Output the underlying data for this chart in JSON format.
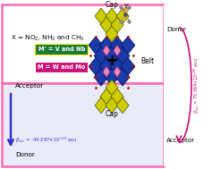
{
  "top_box_edgecolor": "#FF69B4",
  "top_box_facecolor": "#FFFFFF",
  "bottom_facecolor": "#E8EAF8",
  "formula_text": "X = NO$_2$, NH$_2$ and CH$_3$",
  "cap_label": "Cap",
  "belt_label": "Belt",
  "acceptor_left": "Acceptor",
  "donor_left": "Donor",
  "donor_right": "Donor",
  "acceptor_right": "Acceptor",
  "beta_left": "$\\beta_{vec}$ = -44.287×10$^{-30}$ esu",
  "beta_right": "$\\beta_{vec}$ = 75.064×10$^{-30}$ esu",
  "green_text": "M' = V and Nb",
  "pink_text": "M = W and Mo",
  "green_color": "#1A7A3A",
  "pink_color": "#CC1177",
  "blue_arrow": "#3333CC",
  "right_curve_color": "#CC1177",
  "x_label": "X",
  "plus_sign": "+",
  "yellow_oct": "#CCCC00",
  "blue_oct": "#1A3AAA",
  "pink_oct": "#EE88BB",
  "red_dot": "#CC0000",
  "bond_color": "#C8A040",
  "atom_color": "#888888"
}
